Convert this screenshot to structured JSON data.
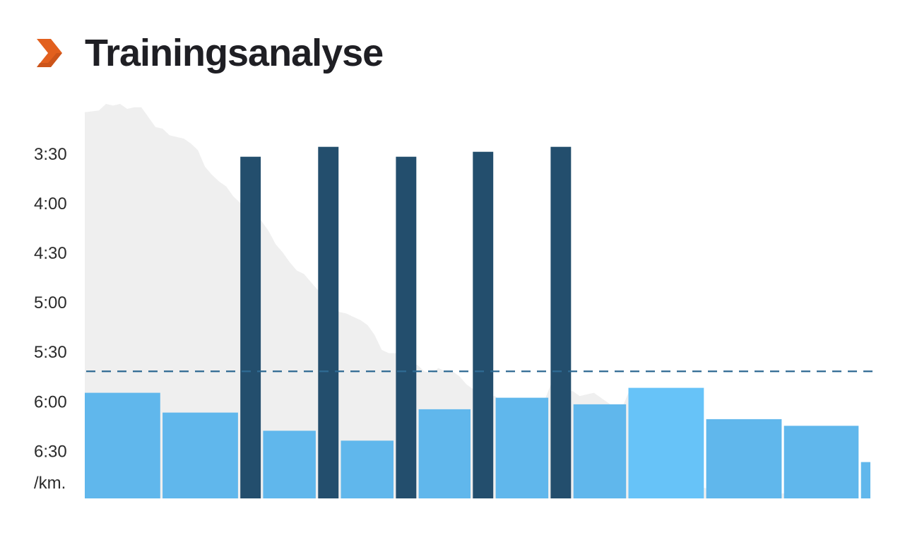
{
  "header": {
    "title": "Trainingsanalyse",
    "icon": "chevron-right-icon",
    "icon_color": "#e2601e"
  },
  "chart_data": {
    "type": "bar",
    "title": "Trainingsanalyse",
    "xlabel": "",
    "ylabel": "",
    "y_unit": "/km.",
    "y_axis": "pace, min:sec per km (inverted: faster at top)",
    "y_ticks": [
      "3:30",
      "4:00",
      "4:30",
      "5:00",
      "5:30",
      "6:00",
      "6:30"
    ],
    "y_tick_seconds": [
      210,
      240,
      270,
      300,
      330,
      360,
      390
    ],
    "ylim_seconds": [
      180,
      419
    ],
    "x_range": [
      0,
      100
    ],
    "grid": false,
    "reference_line": {
      "pace_seconds": 342,
      "style": "dashed",
      "color": "#2f6a92"
    },
    "colors": {
      "interval": "#234e6d",
      "segment": "#5ab4eb",
      "segment_highlight": "#5fc0f8",
      "profile": "#efefef"
    },
    "bars": [
      {
        "x0": 0.0,
        "x1": 9.6,
        "pace_seconds": 355,
        "kind": "segment"
      },
      {
        "x0": 9.9,
        "x1": 19.5,
        "pace_seconds": 367,
        "kind": "segment"
      },
      {
        "x0": 19.8,
        "x1": 22.4,
        "pace_seconds": 212,
        "kind": "interval"
      },
      {
        "x0": 22.7,
        "x1": 29.4,
        "pace_seconds": 378,
        "kind": "segment"
      },
      {
        "x0": 29.7,
        "x1": 32.3,
        "pace_seconds": 206,
        "kind": "interval"
      },
      {
        "x0": 32.6,
        "x1": 39.3,
        "pace_seconds": 384,
        "kind": "segment"
      },
      {
        "x0": 39.6,
        "x1": 42.2,
        "pace_seconds": 212,
        "kind": "interval"
      },
      {
        "x0": 42.5,
        "x1": 49.1,
        "pace_seconds": 365,
        "kind": "segment"
      },
      {
        "x0": 49.4,
        "x1": 52.0,
        "pace_seconds": 209,
        "kind": "interval"
      },
      {
        "x0": 52.3,
        "x1": 59.0,
        "pace_seconds": 358,
        "kind": "segment"
      },
      {
        "x0": 59.3,
        "x1": 61.9,
        "pace_seconds": 206,
        "kind": "interval"
      },
      {
        "x0": 62.2,
        "x1": 68.9,
        "pace_seconds": 362,
        "kind": "segment"
      },
      {
        "x0": 69.2,
        "x1": 78.8,
        "pace_seconds": 352,
        "kind": "segment_highlight"
      },
      {
        "x0": 79.1,
        "x1": 88.7,
        "pace_seconds": 371,
        "kind": "segment"
      },
      {
        "x0": 89.0,
        "x1": 98.5,
        "pace_seconds": 375,
        "kind": "segment"
      },
      {
        "x0": 98.8,
        "x1": 100.0,
        "pace_seconds": 397,
        "kind": "segment"
      }
    ],
    "profile": {
      "x": [
        0,
        1.8,
        2.7,
        3.6,
        4.5,
        5.4,
        6.3,
        7.2,
        8.1,
        9.0,
        9.9,
        10.8,
        11.7,
        12.6,
        13.5,
        14.4,
        15.3,
        16.2,
        17.1,
        18.0,
        18.9,
        19.8,
        20.7,
        21.6,
        22.5,
        23.4,
        24.3,
        25.2,
        26.1,
        27.0,
        27.9,
        28.8,
        29.7,
        30.6,
        31.5,
        32.4,
        33.3,
        34.2,
        35.1,
        36.0,
        36.9,
        37.8,
        38.7,
        39.6,
        40.5,
        41.4,
        42.3,
        43.2,
        44.1,
        45.0,
        45.9,
        46.8,
        47.7,
        48.6,
        49.5,
        50.4,
        51.3,
        52.2,
        53.1,
        54.0,
        54.9,
        55.8,
        56.7,
        57.6,
        58.5,
        59.4,
        60.3,
        61.2,
        62.1,
        63.0,
        63.9,
        64.8,
        65.7,
        66.6,
        67.5,
        68.4,
        69.3,
        70.2,
        71.1,
        72.0,
        72.9,
        73.8,
        74.7,
        75.6,
        76.5,
        77.4,
        78.3,
        79.2,
        80.1,
        81.0,
        81.9,
        82.8,
        83.7,
        84.6,
        85.6,
        86.5,
        87.4,
        88.3,
        89.2,
        90.1,
        91.0,
        91.9,
        92.8,
        93.7,
        94.6,
        95.5,
        96.4,
        97.3,
        98.2,
        99.1,
        100
      ],
      "pace_seconds": [
        185,
        184,
        180,
        181,
        180,
        183,
        182,
        182,
        188,
        194,
        195,
        199,
        200,
        201,
        204,
        208,
        218,
        223,
        227,
        230,
        236,
        240,
        242,
        245,
        251,
        257,
        265,
        270,
        276,
        281,
        283,
        288,
        293,
        296,
        302,
        306,
        307,
        309,
        311,
        314,
        320,
        329,
        331,
        331,
        334,
        339,
        338,
        342,
        343,
        340,
        342,
        342,
        345,
        350,
        353,
        355,
        357,
        357,
        360,
        359,
        363,
        362,
        362,
        362,
        360,
        349,
        350,
        354,
        354,
        357,
        356,
        355,
        358,
        361,
        364,
        364,
        354,
        371,
        382,
        393,
        392,
        391,
        394,
        398,
        404,
        409,
        412,
        413,
        413,
        410,
        415,
        417,
        418,
        419,
        419,
        419,
        419,
        416,
        416,
        418,
        419,
        419,
        419,
        419,
        419,
        419,
        419,
        419,
        419,
        419,
        419
      ]
    }
  }
}
